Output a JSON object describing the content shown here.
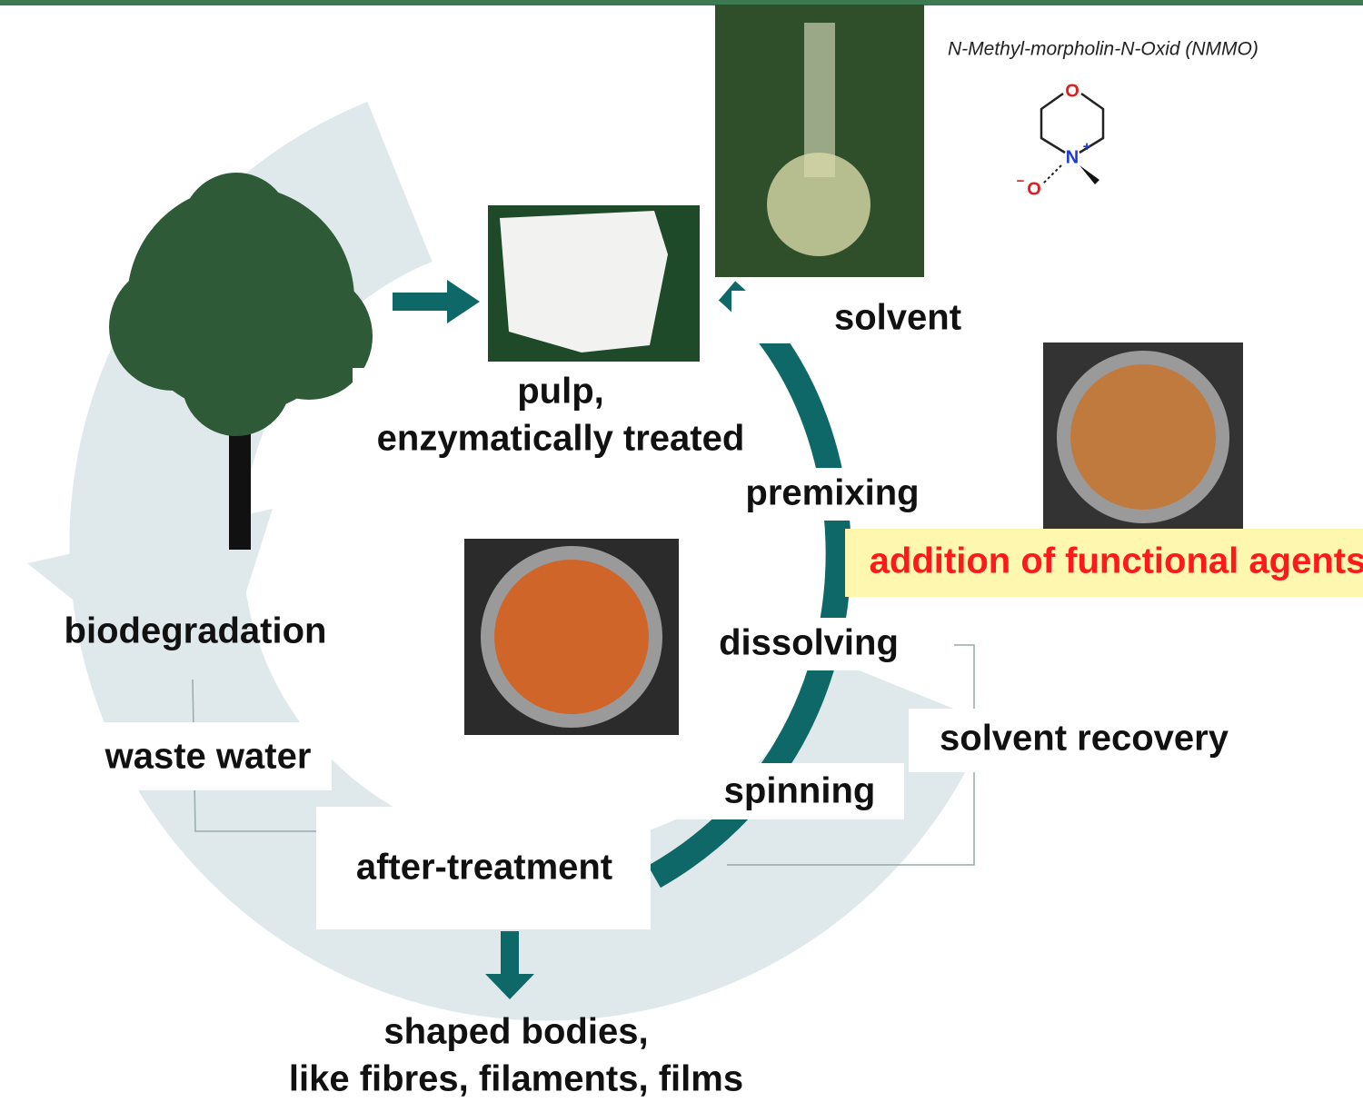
{
  "header": {
    "chemical_name": "N-Methyl-morpholin-N-Oxid (NMMO)"
  },
  "molecule": {
    "ring_oxygen": "O",
    "nitrogen": "N",
    "nitrogen_charge": "+",
    "oxide_oxygen": "O",
    "oxide_charge": "−"
  },
  "nodes": [
    {
      "lines": [
        "pulp,",
        "enzymatically treated"
      ]
    },
    {
      "lines": [
        "solvent"
      ]
    },
    {
      "lines": [
        "premixing"
      ]
    },
    {
      "lines": [
        "addition of functional agents"
      ]
    },
    {
      "lines": [
        "biodegradation"
      ]
    },
    {
      "lines": [
        "dissolving"
      ]
    },
    {
      "lines": [
        "waste water"
      ]
    },
    {
      "lines": [
        "solvent recovery"
      ]
    },
    {
      "lines": [
        "spinning"
      ]
    },
    {
      "lines": [
        "after-treatment"
      ]
    },
    {
      "lines": [
        "shaped bodies,",
        "like fibres, filaments, films"
      ]
    }
  ]
}
